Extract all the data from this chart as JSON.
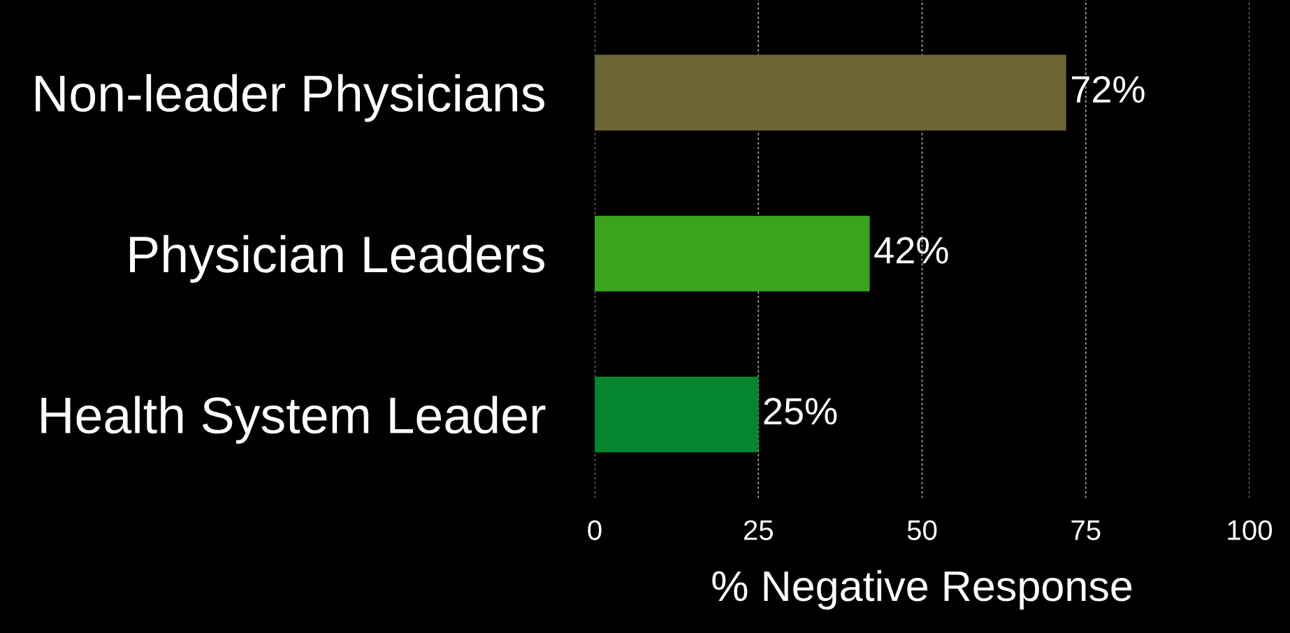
{
  "chart_data": {
    "type": "bar",
    "orientation": "horizontal",
    "xlabel": "% Negative Response",
    "categories": [
      "Non-leader Physicians",
      "Physician Leaders",
      "Health System Leader"
    ],
    "values": [
      72,
      42,
      25
    ],
    "colors": [
      "#6b6535",
      "#3aa41e",
      "#05852e"
    ],
    "value_labels": [
      "72%",
      "42%",
      "25%"
    ],
    "xlim": [
      0,
      100
    ],
    "xticks": [
      0,
      25,
      50,
      75,
      100
    ],
    "grid": "x"
  }
}
